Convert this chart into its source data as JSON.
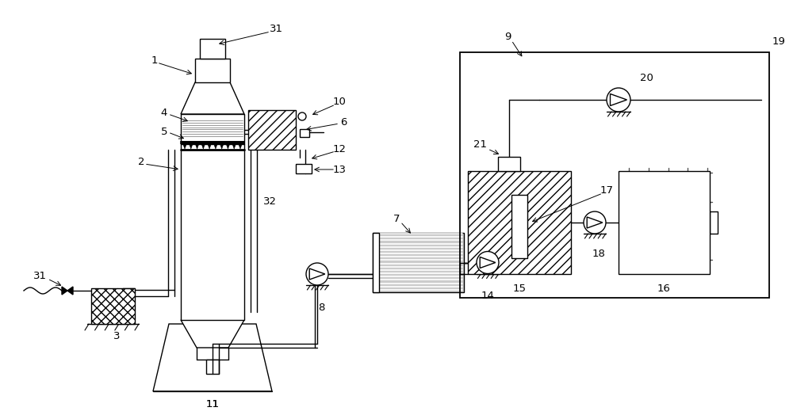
{
  "bg_color": "#ffffff",
  "line_color": "#000000",
  "figsize": [
    10.0,
    5.24
  ],
  "dpi": 100
}
